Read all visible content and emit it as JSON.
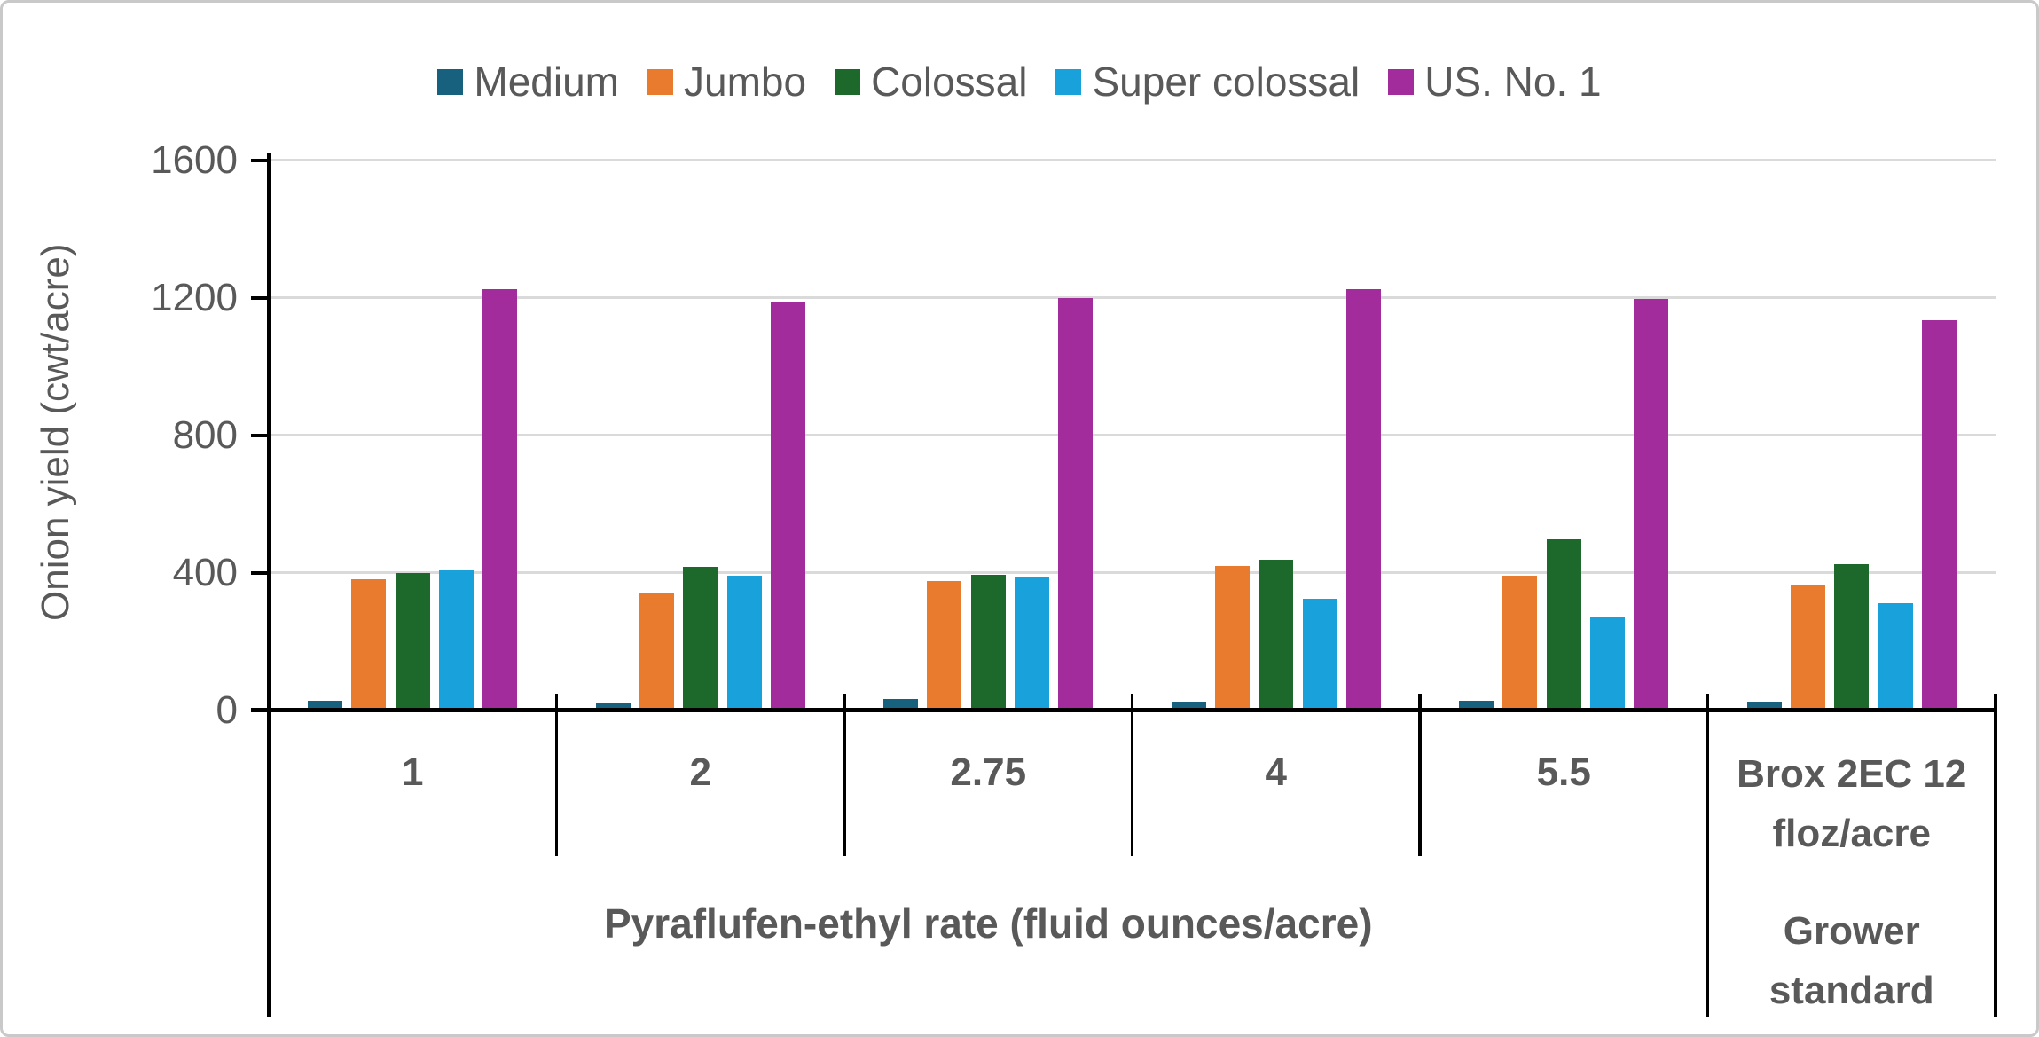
{
  "legend": {
    "items": [
      {
        "label": "Medium",
        "color": "#17617F"
      },
      {
        "label": "Jumbo",
        "color": "#E87B2D"
      },
      {
        "label": "Colossal",
        "color": "#1D692B"
      },
      {
        "label": "Super colossal",
        "color": "#18A1DA"
      },
      {
        "label": "US. No. 1",
        "color": "#A22C9B"
      }
    ]
  },
  "y_axis": {
    "title": "Onion yield (cwt/acre)",
    "ticks": [
      "0",
      "400",
      "800",
      "1200",
      "1600"
    ],
    "min": 0,
    "max": 1600,
    "step": 400
  },
  "x_axis": {
    "categories": [
      "1",
      "2",
      "2.75",
      "4",
      "5.5"
    ],
    "brox_label": "Brox 2EC 12\nfloz/acre",
    "grower_label": "Grower\nstandard",
    "group_title": "Pyraflufen-ethyl rate (fluid ounces/acre)"
  },
  "chart_data": {
    "type": "bar",
    "title": "",
    "xlabel": "Pyraflufen-ethyl rate (fluid ounces/acre)",
    "ylabel": "Onion yield (cwt/acre)",
    "ylim": [
      0,
      1600
    ],
    "grid": true,
    "legend_position": "top",
    "categories": [
      "1",
      "2",
      "2.75",
      "4",
      "5.5",
      "Brox 2EC 12 floz/acre"
    ],
    "series": [
      {
        "name": "Medium",
        "color": "#17617F",
        "values": [
          26,
          22,
          32,
          25,
          27,
          25
        ]
      },
      {
        "name": "Jumbo",
        "color": "#E87B2D",
        "values": [
          380,
          340,
          375,
          420,
          390,
          362
        ]
      },
      {
        "name": "Colossal",
        "color": "#1D692B",
        "values": [
          400,
          418,
          394,
          438,
          498,
          424
        ]
      },
      {
        "name": "Super colossal",
        "color": "#18A1DA",
        "values": [
          408,
          390,
          388,
          325,
          273,
          312
        ]
      },
      {
        "name": "US. No. 1",
        "color": "#A22C9B",
        "values": [
          1225,
          1188,
          1200,
          1225,
          1195,
          1135
        ]
      }
    ]
  }
}
